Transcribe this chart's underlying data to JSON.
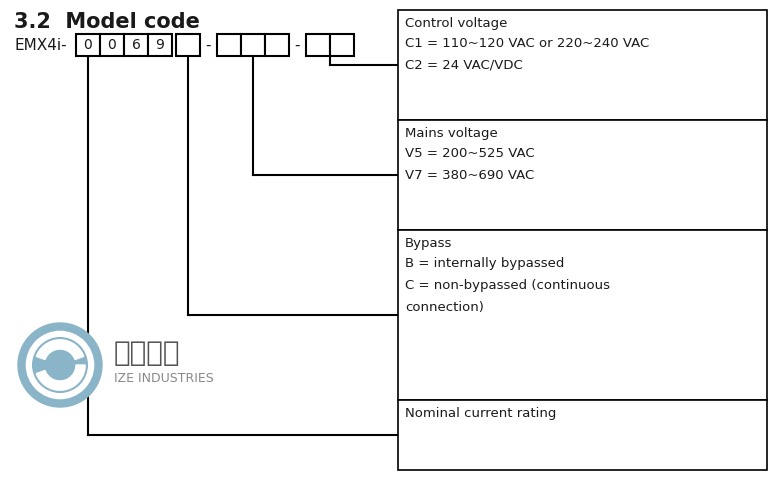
{
  "title": "3.2  Model code",
  "title_fontsize": 15,
  "prefix": "EMX4i-",
  "bg_color": "#ffffff",
  "text_color": "#1a1a1a",
  "line_color": "#000000",
  "box_border_color": "#000000",
  "info_boxes": [
    {
      "label": "Control voltage",
      "lines": [
        "C1 = 110~120 VAC or 220~240 VAC",
        "C2 = 24 VAC/VDC"
      ]
    },
    {
      "label": "Mains voltage",
      "lines": [
        "V5 = 200~525 VAC",
        "V7 = 380~690 VAC"
      ]
    },
    {
      "label": "Bypass",
      "lines": [
        "B = internally bypassed",
        "C = non-bypassed (continuous",
        "connection)"
      ]
    },
    {
      "label": "Nominal current rating",
      "lines": []
    }
  ],
  "logo_color": "#8ab4c8",
  "logo_text": "爱泽工业",
  "logo_subtext": "IZE INDUSTRIES",
  "digits": [
    "0",
    "0",
    "6",
    "9"
  ]
}
